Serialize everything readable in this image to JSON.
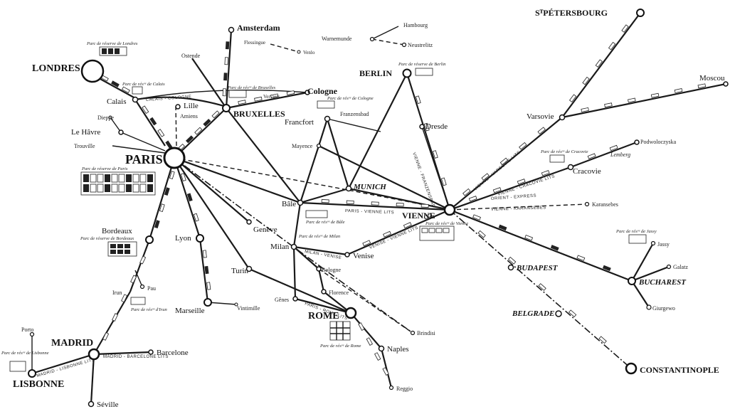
{
  "cities": {
    "londres": "LONDRES",
    "paris": "PARIS",
    "bruxelles": "BRUXELLES",
    "amsterdam": "Amsterdam",
    "berlin": "BERLIN",
    "vienne": "VIENNE",
    "st_petersbourg": "SᵀPÉTERSBOURG",
    "moscou": "Moscou",
    "varsovie": "Varsovie",
    "cracovie": "Cracovie",
    "lemberg": "Lemberg",
    "podwoloczyska": "Podwoloczyska",
    "karansebes": "Karansebes",
    "munich": "MUNICH",
    "bale": "Bâle",
    "geneve": "Genève",
    "milan": "Milan",
    "venise": "Venise",
    "bologne": "Bologne",
    "florence": "Florence",
    "turin": "Turin",
    "genes": "Gênes",
    "rome": "ROME",
    "naples": "Naples",
    "reggio": "Reggio",
    "brindisi": "Brindisi",
    "budapest": "BUDAPEST",
    "belgrade": "BELGRADE",
    "bucharest": "BUCHAREST",
    "constantinople": "CONSTANTINOPLE",
    "jassy": "Jassy",
    "galatz": "Galatz",
    "giurgewo": "Giurgewo",
    "calais": "Calais",
    "lille": "Lille",
    "amiens": "Amiens",
    "dieppe": "Dieppe",
    "le_havre": "Le Hâvre",
    "trouville": "Trouville",
    "ostende": "Ostende",
    "cologne": "Cologne",
    "verviers": "Verviers",
    "francfort": "Francfort",
    "franzensbad": "Franzensbad",
    "dresde": "Dresde",
    "mayence": "Mayence",
    "hambourg": "Hambourg",
    "warnemunde": "Warnemunde",
    "neustrelitz": "Neustrelitz",
    "flessingue": "Flessingue",
    "venlo": "Venlo",
    "bordeaux": "Bordeaux",
    "lyon": "Lyon",
    "marseille": "Marseille",
    "vintimille": "Vintimille",
    "pau": "Pau",
    "irun": "Irun",
    "madrid": "MADRID",
    "lisbonne": "LISBONNE",
    "porto": "Porto",
    "barcelone": "Barcelone",
    "seville": "Séville"
  },
  "depots": {
    "londres": "Parc de réserve de Londres",
    "calais": "Parc de résᵛᵉ de Calais",
    "bruxelles": "Parc de résᵛᵉ de Bruxelles",
    "cologne": "Parc de résᵛᵉ de Cologne",
    "berlin": "Parc de réserve de Berlin",
    "paris": "Parc de réserve de Paris",
    "bordeaux": "Parc de réserve de Bordeaux",
    "bale": "Parc de résᵛᵉ de Bâle",
    "milan": "Parc de résᵛᵉ de Milan",
    "vienne": "Parc de résᵛᵉ de Vienne",
    "cracovie": "Parc de résᵛᵉ de Cracovie",
    "jassy": "Parc de résᵛᵉ de Jassy",
    "rome": "Parc de résᵛᵉ de Rome",
    "irun": "Parc de résᵛᵉ d'Irun",
    "lisbonne": "Parc de résᵛᵉ de Lisbonne"
  },
  "routes": {
    "orient_express": "ORIENT - EXPRESS",
    "paris_vienne": "PARIS - VIENNE  LITS",
    "vienne_varsovie": "VIENNE - VARSOVIE  LITS",
    "vienne_cracovie": "VIENNE - CRACOVIE  LITS",
    "vienne_karansebes": "VIENNE - KARANSEBES",
    "vienne_franzensbad": "VIENNE - FRANZENSBAD",
    "madrid_lisbonne": "MADRID - LISBONNE  LITS",
    "madrid_barcelone": "MADRID - BARCELONE  LITS",
    "venise_vienne": "VENISE - VIENNE  LITS",
    "calais_cologne": "CALAIS - COLOGNE",
    "milan_venise": "MILAN - VENISE",
    "paris_rome": "PARIS - ROME  LITS"
  }
}
